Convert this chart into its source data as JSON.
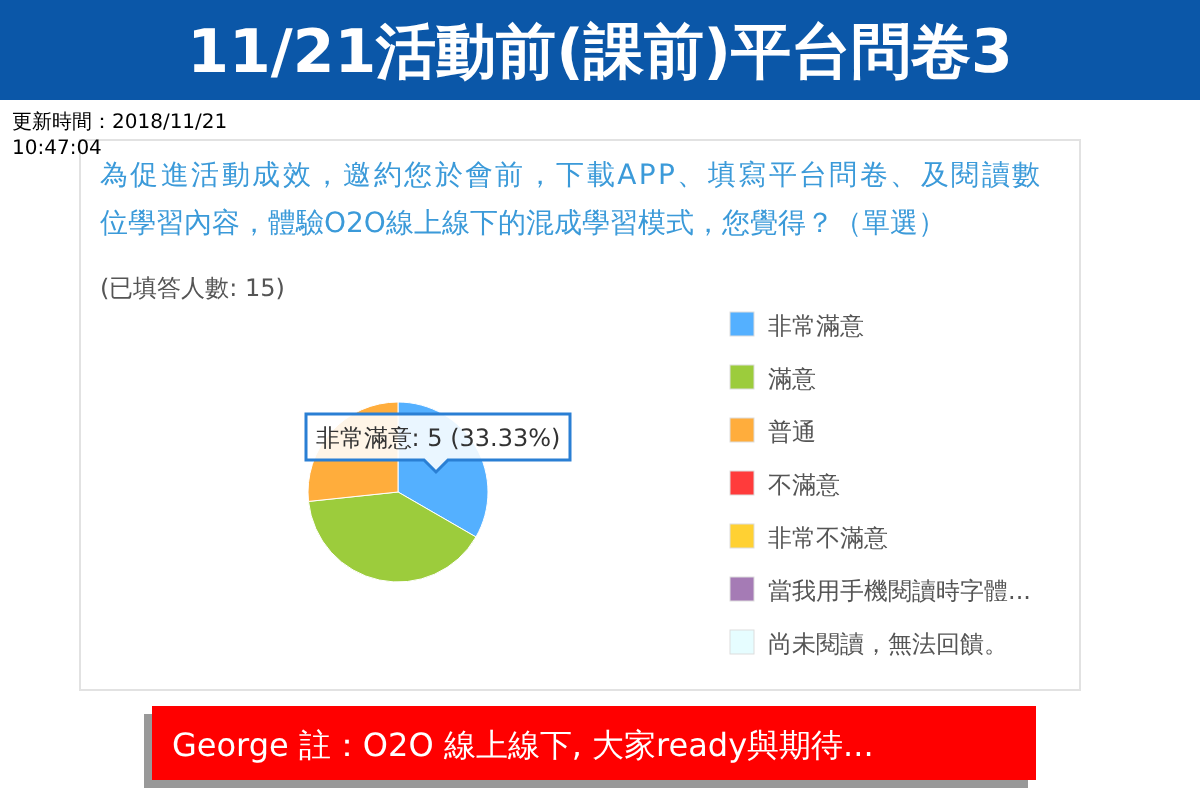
{
  "chart_data": {
    "type": "pie",
    "title": "11/21活動前(課前)平台問卷3",
    "subtitle": "為促進活動成效，邀約您於會前，下載APP、填寫平台問卷、及閱讀數位學習內容，體驗O2O線上線下的混成學習模式，您覺得？（單選）",
    "categories": [
      "非常滿意",
      "滿意",
      "普通",
      "不滿意",
      "非常不滿意",
      "當我用手機閱讀時字體...",
      "尚未閱讀，無法回饋。"
    ],
    "values": [
      33.33,
      40,
      26.67,
      0,
      0,
      0,
      0
    ],
    "colors": [
      "#54b0ff",
      "#9ccc3c",
      "#ffad3c",
      "#ff3b3b",
      "#ffd133",
      "#a57bb5",
      "#e6fdff"
    ],
    "legend": "right",
    "annotations": [
      "更新時間：2018/11/21 10:47:04",
      "(已填答人數: 15)",
      "非常滿意: 5 (33.33%)",
      "George 註：O2O 線上線下, 大家ready與期待..."
    ]
  }
}
